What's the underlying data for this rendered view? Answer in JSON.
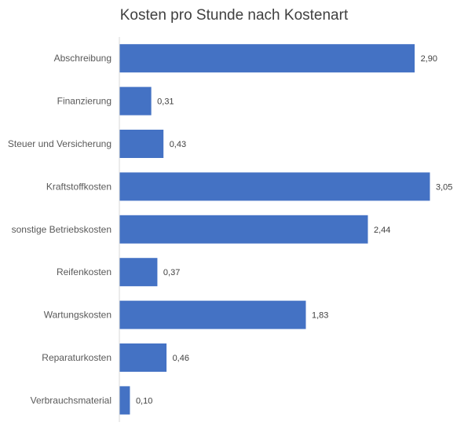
{
  "chart_data": {
    "type": "bar",
    "orientation": "horizontal",
    "title": "Kosten pro Stunde nach Kostenart",
    "categories": [
      "Abschreibung",
      "Finanzierung",
      "Steuer und Versicherung",
      "Kraftstoffkosten",
      "sonstige Betriebskosten",
      "Reifenkosten",
      "Wartungskosten",
      "Reparaturkosten",
      "Verbrauchsmaterial"
    ],
    "values": [
      2.9,
      0.31,
      0.43,
      3.05,
      2.44,
      0.37,
      1.83,
      0.46,
      0.1
    ],
    "value_labels": [
      "2,90",
      "0,31",
      "0,43",
      "3,05",
      "2,44",
      "0,37",
      "1,83",
      "0,46",
      "0,10"
    ],
    "xlabel": "",
    "ylabel": "",
    "xlim": [
      0,
      3.05
    ],
    "grid": false,
    "legend": "none",
    "bar_color": "#4472C4",
    "axis_color": "#D9D9D9",
    "label_color": "#595959",
    "title_color": "#404040"
  }
}
